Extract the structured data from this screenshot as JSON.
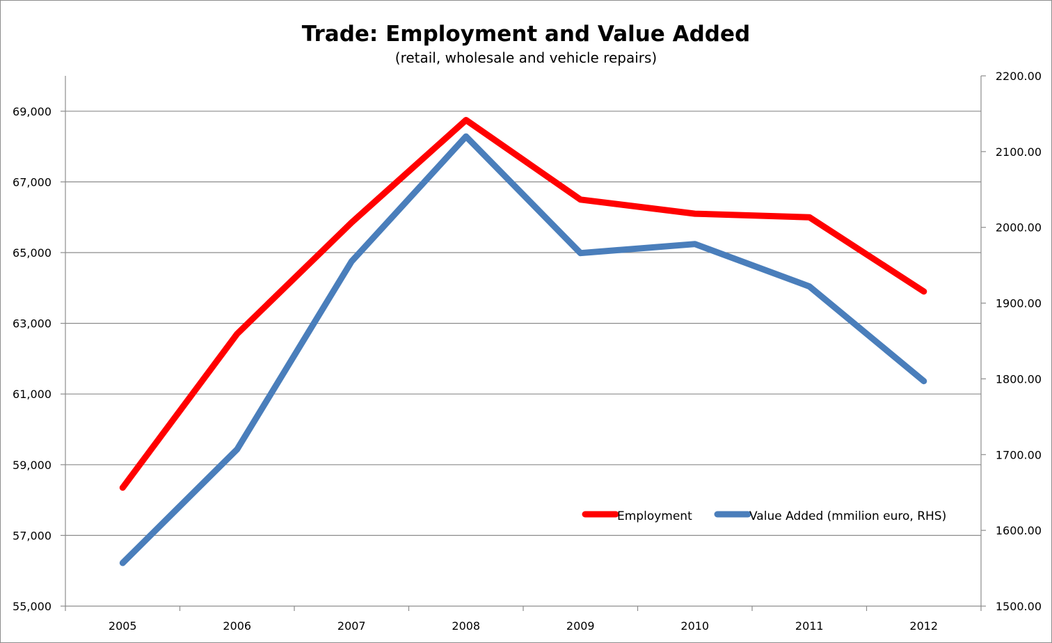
{
  "chart_data": {
    "type": "line",
    "title": "Trade: Employment and Value Added",
    "subtitle": "(retail, wholesale and vehicle repairs)",
    "categories": [
      "2005",
      "2006",
      "2007",
      "2008",
      "2009",
      "2010",
      "2011",
      "2012"
    ],
    "series": [
      {
        "name": "Employment",
        "axis": "left",
        "color": "#ff0000",
        "values": [
          58350,
          62700,
          65850,
          68750,
          66500,
          66100,
          66000,
          63900
        ]
      },
      {
        "name": "Value Added (mmilion euro, RHS)",
        "axis": "right",
        "color": "#4a7ebb",
        "values": [
          1557,
          1707,
          1955,
          2120,
          1966,
          1978,
          1922,
          1797
        ]
      }
    ],
    "y_left": {
      "ylim": [
        55000,
        70000
      ],
      "ticks": [
        55000,
        57000,
        59000,
        61000,
        63000,
        65000,
        67000,
        69000
      ],
      "tick_labels": [
        "55,000",
        "57,000",
        "59,000",
        "61,000",
        "63,000",
        "65,000",
        "67,000",
        "69,000"
      ]
    },
    "y_right": {
      "ylim": [
        1500,
        2200
      ],
      "ticks": [
        1500,
        1600,
        1700,
        1800,
        1900,
        2000,
        2100,
        2200
      ],
      "tick_labels": [
        "1500.00",
        "1600.00",
        "1700.00",
        "1800.00",
        "1900.00",
        "2000.00",
        "2100.00",
        "2200.00"
      ]
    },
    "grid": true,
    "legend_position": "lower-right inside plot"
  }
}
